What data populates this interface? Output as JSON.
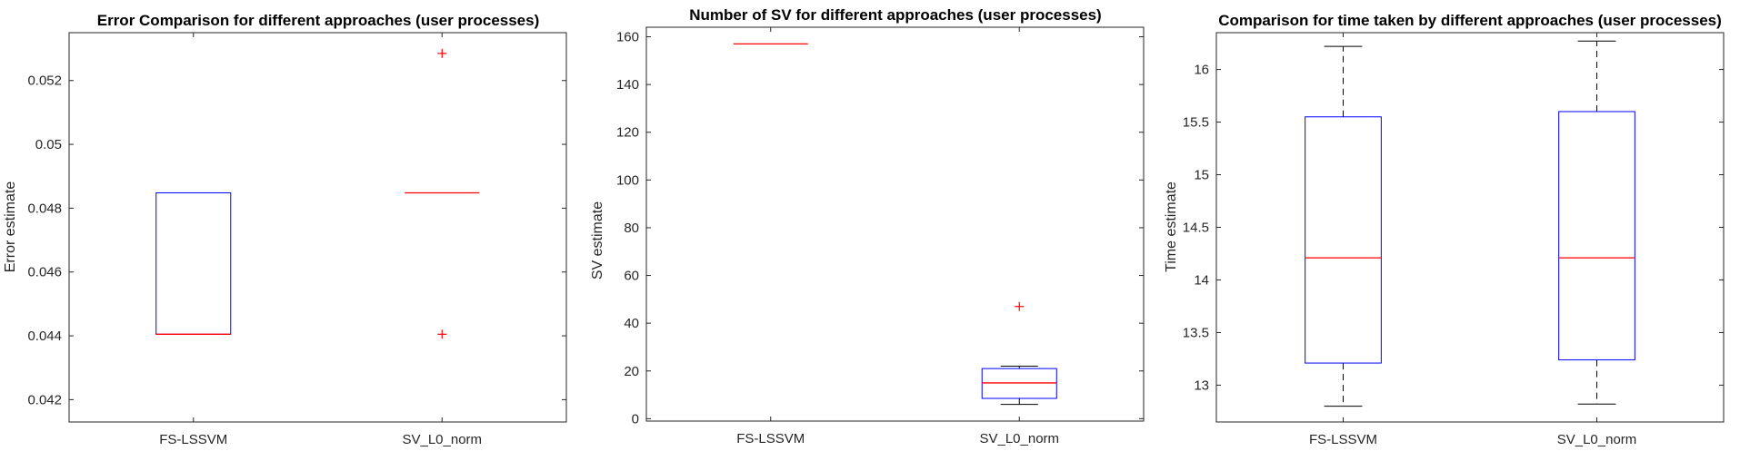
{
  "chart_data": [
    {
      "type": "box",
      "title": "Error Comparison for different approaches (user processes)",
      "xlabel": "",
      "ylabel": "Error estimate",
      "categories": [
        "FS-LSSVM",
        "SV_L0_norm"
      ],
      "ylim": [
        0.0413,
        0.0535
      ],
      "yticks": [
        0.042,
        0.044,
        0.046,
        0.048,
        0.05,
        0.052
      ],
      "ytick_labels": [
        "0.042",
        "0.044",
        "0.046",
        "0.048",
        "0.05",
        "0.052"
      ],
      "boxes": [
        {
          "whisker_low": 0.04405,
          "q1": 0.04405,
          "median": 0.04405,
          "q3": 0.04848,
          "whisker_high": 0.04848,
          "outliers": []
        },
        {
          "whisker_low": 0.04848,
          "q1": 0.04848,
          "median": 0.04848,
          "q3": 0.04848,
          "whisker_high": 0.04848,
          "outliers": [
            0.04405,
            0.05285
          ]
        }
      ],
      "grid": false,
      "colors": {
        "box": "#0000ff",
        "median": "#ff0000",
        "whisker": "#000000",
        "outlier": "#ff0000"
      }
    },
    {
      "type": "box",
      "title": "Number of SV for different approaches (user processes)",
      "xlabel": "",
      "ylabel": "SV estimate",
      "categories": [
        "FS-LSSVM",
        "SV_L0_norm"
      ],
      "ylim": [
        -1,
        164
      ],
      "yticks": [
        0,
        20,
        40,
        60,
        80,
        100,
        120,
        140,
        160
      ],
      "ytick_labels": [
        "0",
        "20",
        "40",
        "60",
        "80",
        "100",
        "120",
        "140",
        "160"
      ],
      "boxes": [
        {
          "whisker_low": 157,
          "q1": 157,
          "median": 157,
          "q3": 157,
          "whisker_high": 157,
          "outliers": []
        },
        {
          "whisker_low": 6,
          "q1": 8.5,
          "median": 15,
          "q3": 21,
          "whisker_high": 22,
          "outliers": [
            47
          ]
        }
      ],
      "grid": false,
      "colors": {
        "box": "#0000ff",
        "median": "#ff0000",
        "whisker": "#000000",
        "outlier": "#ff0000"
      }
    },
    {
      "type": "box",
      "title": "Comparison for time taken by different approaches (user processes)",
      "xlabel": "",
      "ylabel": "Time estimate",
      "categories": [
        "FS-LSSVM",
        "SV_L0_norm"
      ],
      "ylim": [
        12.65,
        16.35
      ],
      "yticks": [
        13,
        13.5,
        14,
        14.5,
        15,
        15.5,
        16
      ],
      "ytick_labels": [
        "13",
        "13.5",
        "14",
        "14.5",
        "15",
        "15.5",
        "16"
      ],
      "boxes": [
        {
          "whisker_low": 12.8,
          "q1": 13.21,
          "median": 14.21,
          "q3": 15.55,
          "whisker_high": 16.22,
          "outliers": []
        },
        {
          "whisker_low": 12.82,
          "q1": 13.24,
          "median": 14.21,
          "q3": 15.6,
          "whisker_high": 16.27,
          "outliers": []
        }
      ],
      "grid": false,
      "colors": {
        "box": "#0000ff",
        "median": "#ff0000",
        "whisker": "#000000",
        "outlier": "#ff0000"
      }
    }
  ]
}
